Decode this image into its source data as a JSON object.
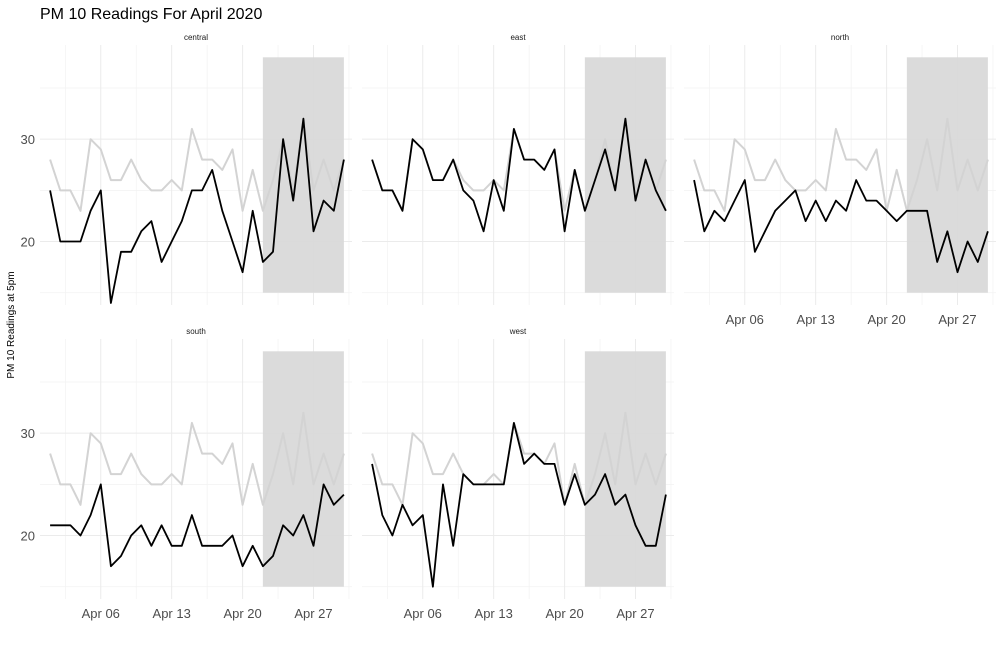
{
  "chart_data": {
    "type": "line",
    "title": "PM 10 Readings For April 2020",
    "ylabel": "PM 10 Readings at 5pm",
    "xlabel": "",
    "x_tick_labels": [
      "Apr 06",
      "Apr 13",
      "Apr 20",
      "Apr 27"
    ],
    "x_tick_days": [
      6,
      13,
      20,
      27
    ],
    "y_tick_labels": [
      "20",
      "30"
    ],
    "y_tick_values": [
      20,
      30
    ],
    "xlim_days": [
      0,
      30.8
    ],
    "ylim": [
      13.8,
      39.2
    ],
    "grid": true,
    "highlight_band_days": [
      22,
      30
    ],
    "highlight_band_y": [
      15,
      38
    ],
    "days": [
      1,
      2,
      3,
      4,
      5,
      6,
      7,
      8,
      9,
      10,
      11,
      12,
      13,
      14,
      15,
      16,
      17,
      18,
      19,
      20,
      21,
      22,
      23,
      24,
      25,
      26,
      27,
      28,
      29,
      30
    ],
    "background_series_color": "#d3d3d3",
    "panels": [
      {
        "label": "central",
        "values": [
          25,
          20,
          20,
          20,
          23,
          25,
          14,
          19,
          19,
          21,
          22,
          18,
          20,
          22,
          25,
          25,
          27,
          23,
          20,
          17,
          23,
          18,
          19,
          30,
          24,
          32,
          21,
          24,
          23,
          28
        ],
        "background_values": [
          28,
          25,
          25,
          23,
          30,
          29,
          26,
          26,
          28,
          26,
          25,
          25,
          26,
          25,
          31,
          28,
          28,
          27,
          29,
          23,
          27,
          23,
          26,
          30,
          25,
          32,
          25,
          28,
          25,
          28
        ]
      },
      {
        "label": "east",
        "values": [
          28,
          25,
          25,
          23,
          30,
          29,
          26,
          26,
          28,
          25,
          24,
          21,
          26,
          23,
          31,
          28,
          28,
          27,
          29,
          21,
          27,
          23,
          26,
          29,
          25,
          32,
          24,
          28,
          25,
          23
        ],
        "background_values": [
          28,
          25,
          25,
          23,
          30,
          29,
          26,
          26,
          28,
          26,
          25,
          25,
          26,
          25,
          31,
          28,
          28,
          27,
          29,
          23,
          27,
          23,
          26,
          30,
          25,
          32,
          25,
          28,
          25,
          28
        ]
      },
      {
        "label": "north",
        "values": [
          26,
          21,
          23,
          22,
          24,
          26,
          19,
          21,
          23,
          24,
          25,
          22,
          24,
          22,
          24,
          23,
          26,
          24,
          24,
          23,
          22,
          23,
          23,
          23,
          18,
          21,
          17,
          20,
          18,
          21
        ],
        "background_values": [
          28,
          25,
          25,
          23,
          30,
          29,
          26,
          26,
          28,
          26,
          25,
          25,
          26,
          25,
          31,
          28,
          28,
          27,
          29,
          23,
          27,
          23,
          26,
          30,
          25,
          32,
          25,
          28,
          25,
          28
        ]
      },
      {
        "label": "south",
        "values": [
          21,
          21,
          21,
          20,
          22,
          25,
          17,
          18,
          20,
          21,
          19,
          21,
          19,
          19,
          22,
          19,
          19,
          19,
          20,
          17,
          19,
          17,
          18,
          21,
          20,
          22,
          19,
          25,
          23,
          24
        ],
        "background_values": [
          28,
          25,
          25,
          23,
          30,
          29,
          26,
          26,
          28,
          26,
          25,
          25,
          26,
          25,
          31,
          28,
          28,
          27,
          29,
          23,
          27,
          23,
          26,
          30,
          25,
          32,
          25,
          28,
          25,
          28
        ]
      },
      {
        "label": "west",
        "values": [
          27,
          22,
          20,
          23,
          21,
          22,
          15,
          25,
          19,
          26,
          25,
          25,
          25,
          25,
          31,
          27,
          28,
          27,
          27,
          23,
          26,
          23,
          24,
          26,
          23,
          24,
          21,
          19,
          19,
          24
        ],
        "background_values": [
          28,
          25,
          25,
          23,
          30,
          29,
          26,
          26,
          28,
          26,
          25,
          25,
          26,
          25,
          31,
          28,
          28,
          27,
          29,
          23,
          27,
          23,
          26,
          30,
          25,
          32,
          25,
          28,
          25,
          28
        ]
      }
    ]
  }
}
